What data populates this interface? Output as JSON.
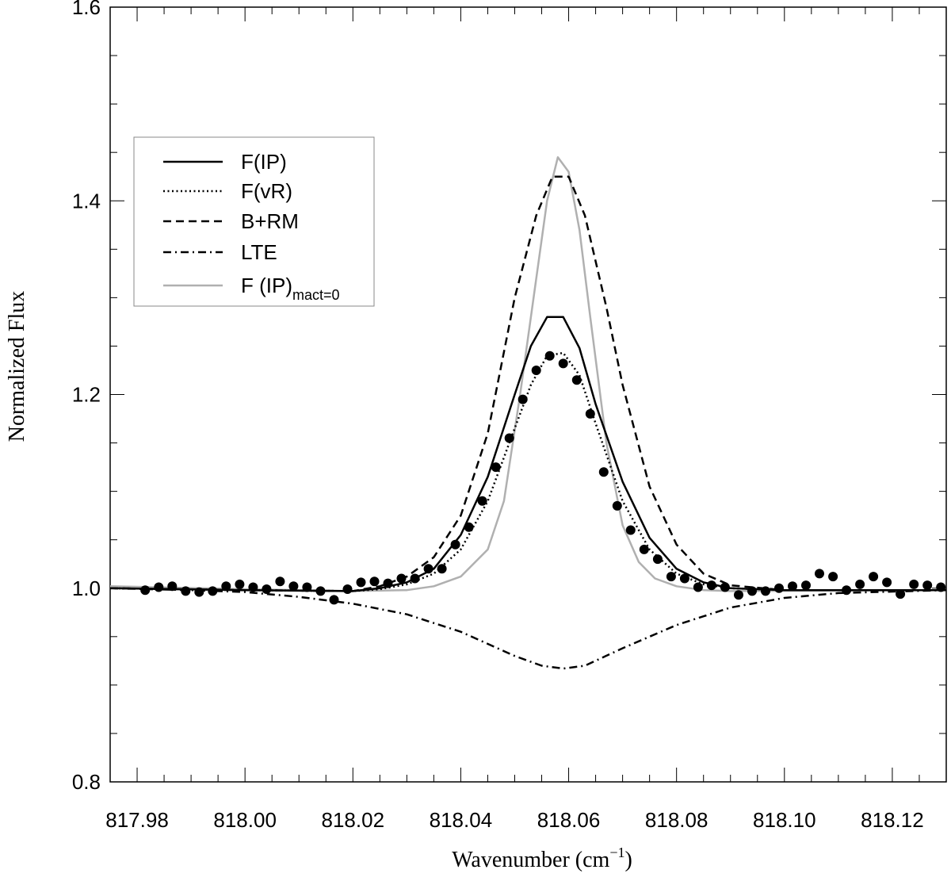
{
  "chart_data": {
    "type": "line",
    "xlabel": "Wavenumber (cm",
    "xlabel_sup": "−1",
    "xlabel_close": ")",
    "ylabel": "Normalized Flux",
    "xlim": [
      817.975,
      818.13
    ],
    "ylim": [
      0.8,
      1.6
    ],
    "x_ticks": [
      "817.98",
      "818.00",
      "818.02",
      "818.04",
      "818.06",
      "818.08",
      "818.10",
      "818.12"
    ],
    "y_ticks": [
      "0.8",
      "1.0",
      "1.2",
      "1.4",
      "1.6"
    ],
    "legend_position": "upper-left",
    "series": [
      {
        "name": "F(IP)",
        "style": "solid",
        "color": "#000000",
        "x": [
          817.975,
          818.0,
          818.02,
          818.025,
          818.03,
          818.035,
          818.04,
          818.045,
          818.05,
          818.053,
          818.056,
          818.059,
          818.062,
          818.065,
          818.07,
          818.075,
          818.08,
          818.085,
          818.09,
          818.1,
          818.13
        ],
        "y": [
          1.0,
          0.998,
          0.997,
          1.0,
          1.006,
          1.02,
          1.055,
          1.115,
          1.2,
          1.25,
          1.28,
          1.28,
          1.248,
          1.19,
          1.11,
          1.052,
          1.02,
          1.006,
          1.0,
          0.998,
          0.998
        ]
      },
      {
        "name": "F(vR)",
        "style": "dotted",
        "color": "#000000",
        "x": [
          817.975,
          818.0,
          818.02,
          818.025,
          818.03,
          818.035,
          818.04,
          818.045,
          818.05,
          818.053,
          818.056,
          818.059,
          818.062,
          818.065,
          818.07,
          818.075,
          818.08,
          818.085,
          818.09,
          818.1,
          818.13
        ],
        "y": [
          1.0,
          0.998,
          0.997,
          0.999,
          1.004,
          1.015,
          1.04,
          1.09,
          1.165,
          1.21,
          1.24,
          1.243,
          1.22,
          1.17,
          1.09,
          1.04,
          1.015,
          1.004,
          1.0,
          0.998,
          0.998
        ]
      },
      {
        "name": "B+RM",
        "style": "dashed",
        "color": "#000000",
        "x": [
          817.975,
          818.0,
          818.02,
          818.025,
          818.03,
          818.035,
          818.04,
          818.045,
          818.05,
          818.054,
          818.057,
          818.06,
          818.063,
          818.067,
          818.07,
          818.075,
          818.08,
          818.085,
          818.09,
          818.1,
          818.13
        ],
        "y": [
          1.0,
          0.998,
          0.997,
          1.002,
          1.012,
          1.032,
          1.075,
          1.16,
          1.3,
          1.385,
          1.425,
          1.425,
          1.385,
          1.29,
          1.21,
          1.105,
          1.045,
          1.015,
          1.003,
          0.998,
          0.998
        ]
      },
      {
        "name": "LTE",
        "style": "dashdot",
        "color": "#000000",
        "x": [
          817.975,
          817.99,
          818.0,
          818.01,
          818.02,
          818.03,
          818.04,
          818.05,
          818.055,
          818.059,
          818.063,
          818.07,
          818.08,
          818.09,
          818.1,
          818.11,
          818.13
        ],
        "y": [
          1.0,
          0.998,
          0.996,
          0.991,
          0.984,
          0.973,
          0.955,
          0.93,
          0.92,
          0.917,
          0.92,
          0.938,
          0.962,
          0.98,
          0.99,
          0.995,
          0.998
        ]
      },
      {
        "name": "F (IP)",
        "name_sub": "mact=0",
        "style": "solid",
        "color": "#b0b0b0",
        "x": [
          817.975,
          818.0,
          818.02,
          818.03,
          818.035,
          818.04,
          818.045,
          818.048,
          818.051,
          818.054,
          818.056,
          818.058,
          818.06,
          818.062,
          818.064,
          818.067,
          818.07,
          818.073,
          818.076,
          818.08,
          818.085,
          818.09,
          818.13
        ],
        "y": [
          1.002,
          0.999,
          0.997,
          0.998,
          1.002,
          1.012,
          1.04,
          1.09,
          1.2,
          1.32,
          1.4,
          1.445,
          1.43,
          1.37,
          1.28,
          1.15,
          1.065,
          1.027,
          1.01,
          1.002,
          0.998,
          0.997,
          0.998
        ]
      },
      {
        "name": "",
        "style": "markers",
        "color": "#000000",
        "x": [
          817.9815,
          817.984,
          817.9865,
          817.989,
          817.9915,
          817.994,
          817.9965,
          817.999,
          818.0015,
          818.004,
          818.0065,
          818.009,
          818.0115,
          818.014,
          818.0165,
          818.019,
          818.0215,
          818.024,
          818.0265,
          818.029,
          818.0315,
          818.034,
          818.0365,
          818.039,
          818.0415,
          818.044,
          818.0465,
          818.049,
          818.0515,
          818.054,
          818.0565,
          818.059,
          818.0615,
          818.064,
          818.0665,
          818.069,
          818.0715,
          818.074,
          818.0765,
          818.079,
          818.0815,
          818.084,
          818.0865,
          818.089,
          818.0915,
          818.094,
          818.0965,
          818.099,
          818.1015,
          818.104,
          818.1065,
          818.109,
          818.1115,
          818.114,
          818.1165,
          818.119,
          818.1215,
          818.124,
          818.1265,
          818.129
        ],
        "y": [
          0.998,
          1.001,
          1.002,
          0.997,
          0.996,
          0.997,
          1.002,
          1.004,
          1.001,
          0.999,
          1.007,
          1.002,
          1.001,
          0.997,
          0.988,
          0.999,
          1.006,
          1.007,
          1.005,
          1.01,
          1.01,
          1.02,
          1.02,
          1.045,
          1.063,
          1.09,
          1.125,
          1.155,
          1.195,
          1.225,
          1.24,
          1.232,
          1.215,
          1.18,
          1.12,
          1.085,
          1.06,
          1.04,
          1.03,
          1.012,
          1.01,
          1.001,
          1.003,
          1.001,
          0.993,
          0.997,
          0.997,
          1.0,
          1.002,
          1.003,
          1.015,
          1.012,
          0.998,
          1.004,
          1.012,
          1.006,
          0.994,
          1.004,
          1.003,
          1.001
        ]
      }
    ]
  }
}
